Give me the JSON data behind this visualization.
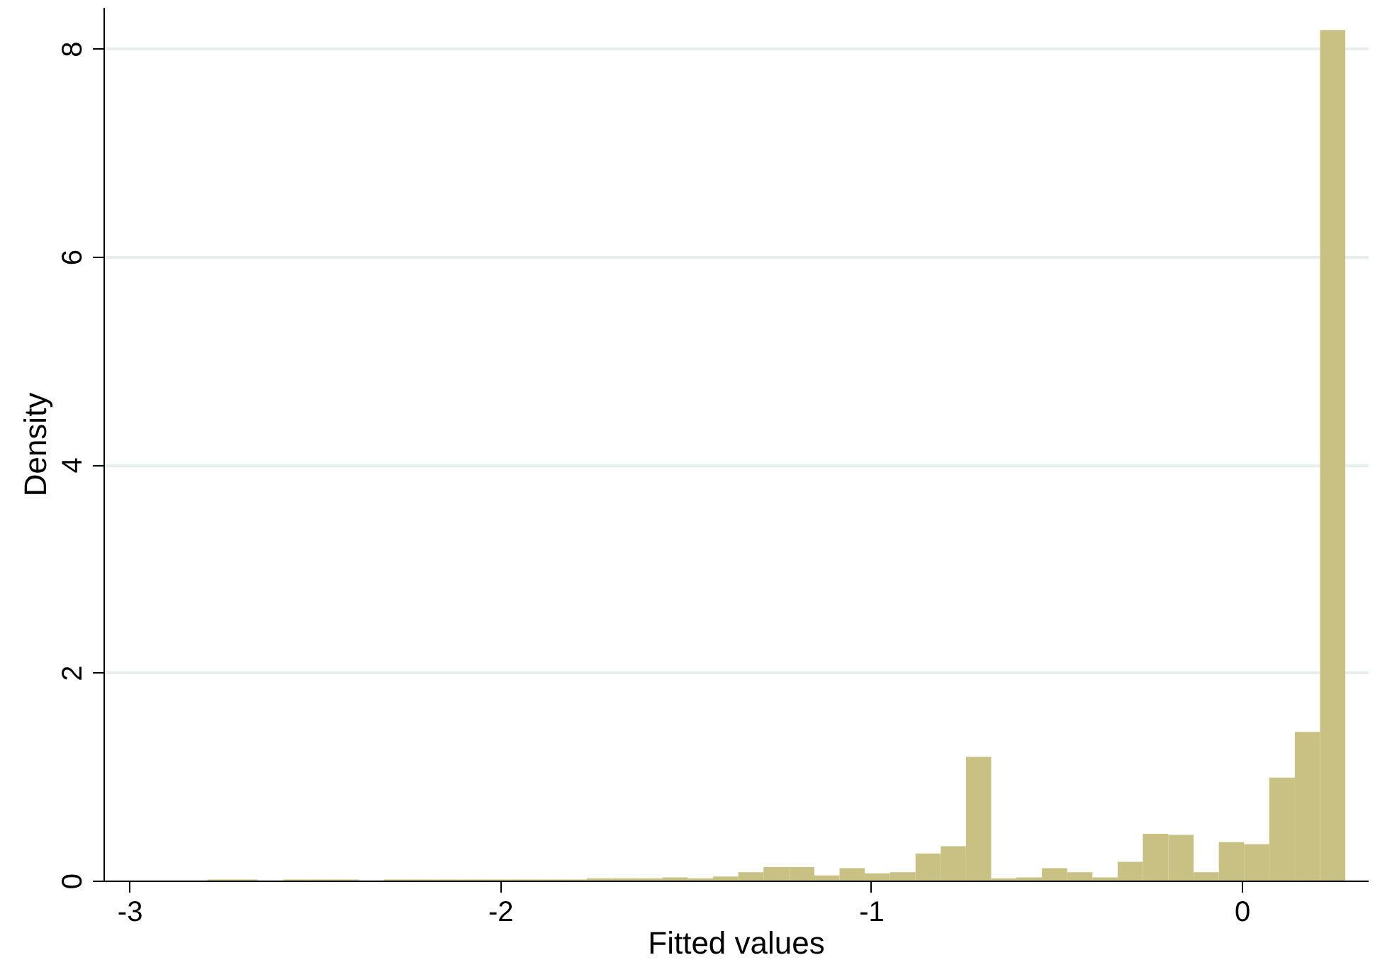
{
  "chart_data": {
    "type": "histogram",
    "xlabel": "Fitted values",
    "ylabel": "Density",
    "bins": [
      -2.79,
      -2.722,
      -2.654,
      -2.585,
      -2.517,
      -2.449,
      -2.381,
      -2.313,
      -2.244,
      -2.176,
      -2.108,
      -2.04,
      -1.972,
      -1.903,
      -1.835,
      -1.767,
      -1.699,
      -1.631,
      -1.562,
      -1.494,
      -1.426,
      -1.358,
      -1.29,
      -1.221,
      -1.153,
      -1.085,
      -1.017,
      -0.949,
      -0.88,
      -0.812,
      -0.744,
      -0.676,
      -0.608,
      -0.539,
      -0.471,
      -0.403,
      -0.335,
      -0.267,
      -0.198,
      -0.13,
      -0.062,
      0.006,
      0.074,
      0.143,
      0.211,
      0.279
    ],
    "values": [
      0.01,
      0.01,
      0,
      0.01,
      0.01,
      0.01,
      0,
      0.01,
      0.01,
      0.01,
      0.01,
      0.01,
      0.01,
      0.01,
      0.01,
      0.02,
      0.02,
      0.02,
      0.03,
      0.02,
      0.04,
      0.08,
      0.13,
      0.13,
      0.05,
      0.12,
      0.07,
      0.08,
      0.26,
      0.33,
      1.19,
      0.02,
      0.03,
      0.12,
      0.08,
      0.03,
      0.18,
      0.45,
      0.44,
      0.08,
      0.37,
      0.35,
      0.99,
      1.43,
      8.18
    ],
    "color": "#c9c183",
    "xlim": [
      -3.07,
      0.34
    ],
    "xticks": [
      -3,
      -2,
      -1,
      0
    ],
    "ylim": [
      0,
      8.4
    ],
    "yticks": [
      0,
      2,
      4,
      6,
      8
    ],
    "grid": "y"
  }
}
